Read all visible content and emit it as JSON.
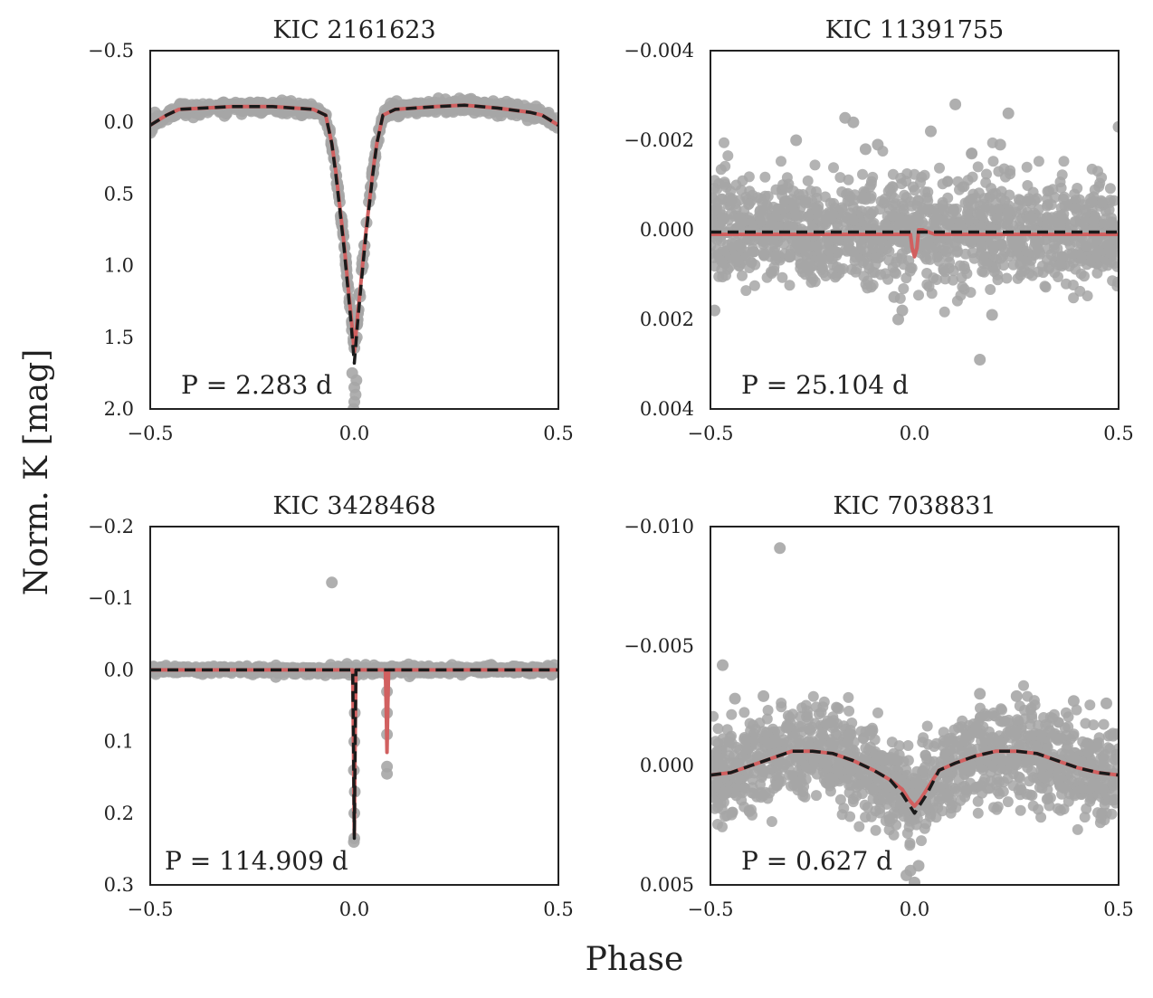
{
  "figure": {
    "ylabel": "Norm. K [mag]",
    "xlabel": "Phase",
    "colors": {
      "data": "#a6a6a6",
      "model": "#d16060",
      "fit": "#1a1a1a",
      "frame": "#222222"
    }
  },
  "chart_data": [
    {
      "type": "scatter",
      "title": "KIC 2161623",
      "annotation": "P = 2.283 d",
      "period_days": 2.283,
      "xlabel": "",
      "ylabel": "",
      "xlim": [
        -0.5,
        0.5
      ],
      "ylim": [
        2.0,
        -0.5
      ],
      "y_inverted": true,
      "xticks": [
        -0.5,
        0.0,
        0.5
      ],
      "xtick_labels": [
        "−0.5",
        "0.0",
        "0.5"
      ],
      "yticks": [
        -0.5,
        0.0,
        0.5,
        1.0,
        1.5,
        2.0
      ],
      "ytick_labels": [
        "−0.5",
        "0.0",
        "0.5",
        "1.0",
        "1.5",
        "2.0"
      ],
      "series": [
        {
          "name": "model",
          "style": "solid",
          "color": "#d16060",
          "x": [
            -0.5,
            -0.46,
            -0.43,
            -0.3,
            -0.2,
            -0.1,
            -0.07,
            -0.055,
            -0.045,
            -0.035,
            -0.025,
            -0.015,
            -0.008,
            0.0,
            0.008,
            0.015,
            0.025,
            0.035,
            0.045,
            0.055,
            0.07,
            0.1,
            0.2,
            0.27,
            0.35,
            0.43,
            0.46,
            0.5
          ],
          "y": [
            0.02,
            -0.05,
            -0.09,
            -0.11,
            -0.11,
            -0.09,
            -0.05,
            0.15,
            0.35,
            0.6,
            0.85,
            1.15,
            1.35,
            1.6,
            1.35,
            1.15,
            0.85,
            0.6,
            0.35,
            0.15,
            -0.05,
            -0.09,
            -0.11,
            -0.12,
            -0.1,
            -0.07,
            -0.05,
            0.02
          ]
        },
        {
          "name": "fit",
          "style": "dashed",
          "color": "#1a1a1a",
          "x": [
            -0.5,
            -0.46,
            -0.43,
            -0.3,
            -0.2,
            -0.1,
            -0.07,
            -0.055,
            -0.045,
            -0.035,
            -0.025,
            -0.015,
            -0.008,
            0.0,
            0.008,
            0.015,
            0.025,
            0.035,
            0.045,
            0.055,
            0.07,
            0.1,
            0.2,
            0.27,
            0.35,
            0.43,
            0.46,
            0.5
          ],
          "y": [
            0.02,
            -0.05,
            -0.09,
            -0.11,
            -0.11,
            -0.09,
            -0.05,
            0.15,
            0.37,
            0.62,
            0.88,
            1.18,
            1.4,
            1.68,
            1.4,
            1.18,
            0.88,
            0.62,
            0.37,
            0.15,
            -0.05,
            -0.09,
            -0.11,
            -0.12,
            -0.1,
            -0.07,
            -0.05,
            0.02
          ]
        },
        {
          "name": "data",
          "style": "points",
          "color": "#a6a6a6",
          "x": [
            -0.49,
            -0.47,
            -0.44,
            -0.4,
            -0.35,
            -0.3,
            -0.25,
            -0.2,
            -0.15,
            -0.1,
            -0.08,
            -0.06,
            -0.05,
            -0.04,
            -0.03,
            -0.02,
            -0.012,
            -0.006,
            0.0,
            0.0,
            0.003,
            0.006,
            0.012,
            0.02,
            0.03,
            0.04,
            0.05,
            0.06,
            0.08,
            0.1,
            0.15,
            0.2,
            0.25,
            0.3,
            0.35,
            0.4,
            0.44,
            0.47,
            0.49,
            -0.005,
            0.005,
            -0.002
          ],
          "y": [
            0.02,
            -0.03,
            -0.08,
            -0.1,
            -0.11,
            -0.12,
            -0.12,
            -0.11,
            -0.1,
            -0.09,
            -0.07,
            0.05,
            0.25,
            0.45,
            0.7,
            0.98,
            1.25,
            1.45,
            1.85,
            1.95,
            1.9,
            1.5,
            1.2,
            0.95,
            0.7,
            0.45,
            0.25,
            0.05,
            -0.07,
            -0.09,
            -0.11,
            -0.12,
            -0.12,
            -0.12,
            -0.11,
            -0.09,
            -0.06,
            -0.02,
            0.02,
            1.75,
            1.8,
            2.0
          ]
        }
      ]
    },
    {
      "type": "scatter",
      "title": "KIC 11391755",
      "annotation": "P = 25.104 d",
      "period_days": 25.104,
      "xlabel": "",
      "ylabel": "",
      "xlim": [
        -0.5,
        0.5
      ],
      "ylim": [
        0.004,
        -0.004
      ],
      "y_inverted": true,
      "xticks": [
        -0.5,
        0.0,
        0.5
      ],
      "xtick_labels": [
        "−0.5",
        "0.0",
        "0.5"
      ],
      "yticks": [
        -0.004,
        -0.002,
        0.0,
        0.002,
        0.004
      ],
      "ytick_labels": [
        "−0.004",
        "−0.002",
        "0.000",
        "0.002",
        "0.004"
      ],
      "series": [
        {
          "name": "model",
          "style": "solid",
          "color": "#d16060",
          "x": [
            -0.5,
            -0.02,
            -0.01,
            -0.006,
            0.0,
            0.006,
            0.01,
            0.02,
            0.05,
            0.1,
            0.5
          ],
          "y": [
            0.0001,
            0.0001,
            0.0001,
            0.0004,
            0.0006,
            0.0004,
            0.0,
            0.0,
            0.0001,
            0.0001,
            0.0001
          ]
        },
        {
          "name": "fit",
          "style": "dashed",
          "color": "#1a1a1a",
          "x": [
            -0.5,
            0.5
          ],
          "y": [
            5e-05,
            5e-05
          ]
        },
        {
          "name": "data_outliers",
          "style": "points",
          "color": "#a6a6a6",
          "x": [
            -0.17,
            -0.15,
            0.1,
            0.23,
            0.04,
            -0.29,
            -0.12,
            -0.09,
            0.14,
            0.21,
            0.5,
            -0.03,
            -0.05,
            -0.49,
            0.16,
            -0.04,
            0.19
          ],
          "y": [
            -0.0025,
            -0.0024,
            -0.0028,
            -0.0026,
            -0.0022,
            -0.002,
            -0.0018,
            -0.0019,
            -0.0017,
            -0.0019,
            -0.0023,
            0.0018,
            0.0015,
            0.0018,
            0.0029,
            0.002,
            0.0019
          ]
        }
      ],
      "scatter_band": {
        "y_center": 0.0,
        "y_spread": 0.0013,
        "x_range": [
          -0.5,
          0.5
        ]
      }
    },
    {
      "type": "scatter",
      "title": "KIC 3428468",
      "annotation": "P = 114.909 d",
      "period_days": 114.909,
      "xlabel": "",
      "ylabel": "",
      "xlim": [
        -0.5,
        0.5
      ],
      "ylim": [
        0.3,
        -0.2
      ],
      "y_inverted": true,
      "xticks": [
        -0.5,
        0.0,
        0.5
      ],
      "xtick_labels": [
        "−0.5",
        "0.0",
        "0.5"
      ],
      "yticks": [
        -0.2,
        -0.1,
        0.0,
        0.1,
        0.2,
        0.3
      ],
      "ytick_labels": [
        "−0.2",
        "−0.1",
        "0.0",
        "0.1",
        "0.2",
        "0.3"
      ],
      "series": [
        {
          "name": "model",
          "style": "solid",
          "color": "#d16060",
          "x": [
            -0.5,
            -0.004,
            -0.002,
            0.0,
            0.002,
            0.004,
            0.076,
            0.078,
            0.08,
            0.082,
            0.084,
            0.5
          ],
          "y": [
            0.0,
            0.0,
            0.1,
            0.23,
            0.1,
            0.0,
            0.0,
            0.05,
            0.115,
            0.05,
            0.0,
            0.0
          ]
        },
        {
          "name": "fit",
          "style": "dashed",
          "color": "#1a1a1a",
          "x": [
            -0.5,
            -0.004,
            -0.002,
            0.0,
            0.002,
            0.004,
            0.5
          ],
          "y": [
            0.0,
            0.0,
            0.1,
            0.235,
            0.1,
            0.0,
            0.0
          ]
        },
        {
          "name": "data",
          "style": "points",
          "color": "#a6a6a6",
          "x": [
            -0.055,
            -0.001,
            0.0,
            0.0,
            0.001,
            -0.001,
            0.0,
            0.001,
            0.08,
            0.08,
            0.08,
            0.08,
            0.08
          ],
          "y": [
            -0.122,
            0.24,
            0.235,
            0.2,
            0.17,
            0.14,
            0.1,
            0.06,
            0.145,
            0.135,
            0.09,
            0.06,
            0.03
          ]
        }
      ],
      "scatter_band": {
        "y_center": 0.0,
        "y_spread": 0.004,
        "x_range": [
          -0.5,
          0.5
        ]
      }
    },
    {
      "type": "scatter",
      "title": "KIC 7038831",
      "annotation": "P = 0.627 d",
      "period_days": 0.627,
      "xlabel": "",
      "ylabel": "",
      "xlim": [
        -0.5,
        0.5
      ],
      "ylim": [
        0.005,
        -0.01
      ],
      "y_inverted": true,
      "xticks": [
        -0.5,
        0.0,
        0.5
      ],
      "xtick_labels": [
        "−0.5",
        "0.0",
        "0.5"
      ],
      "yticks": [
        -0.01,
        -0.005,
        0.0,
        0.005
      ],
      "ytick_labels": [
        "−0.010",
        "−0.005",
        "0.000",
        "0.005"
      ],
      "series": [
        {
          "name": "model",
          "style": "solid",
          "color": "#d16060",
          "x": [
            -0.5,
            -0.45,
            -0.4,
            -0.35,
            -0.3,
            -0.25,
            -0.2,
            -0.15,
            -0.1,
            -0.06,
            -0.03,
            -0.015,
            0.0,
            0.015,
            0.03,
            0.06,
            0.1,
            0.15,
            0.2,
            0.25,
            0.3,
            0.35,
            0.4,
            0.45,
            0.5
          ],
          "y": [
            0.0004,
            0.0003,
            0.0,
            -0.0003,
            -0.0006,
            -0.0006,
            -0.0005,
            -0.0002,
            0.0002,
            0.0006,
            0.001,
            0.0014,
            0.0017,
            0.0014,
            0.001,
            0.0002,
            -0.0001,
            -0.0004,
            -0.0006,
            -0.0006,
            -0.0005,
            -0.0002,
            0.0001,
            0.0003,
            0.0004
          ]
        },
        {
          "name": "fit",
          "style": "dashed",
          "color": "#1a1a1a",
          "x": [
            -0.5,
            -0.45,
            -0.4,
            -0.35,
            -0.3,
            -0.25,
            -0.2,
            -0.15,
            -0.1,
            -0.06,
            -0.03,
            -0.015,
            0.0,
            0.015,
            0.03,
            0.06,
            0.1,
            0.15,
            0.2,
            0.25,
            0.3,
            0.35,
            0.4,
            0.45,
            0.5
          ],
          "y": [
            0.0004,
            0.0003,
            0.0,
            -0.0003,
            -0.0006,
            -0.0006,
            -0.0005,
            -0.0002,
            0.0002,
            0.0006,
            0.0012,
            0.0016,
            0.002,
            0.0016,
            0.0012,
            0.0002,
            -0.0001,
            -0.0004,
            -0.0006,
            -0.0006,
            -0.0005,
            -0.0002,
            0.0001,
            0.0003,
            0.0004
          ]
        },
        {
          "name": "data_outliers",
          "style": "points",
          "color": "#a6a6a6",
          "x": [
            -0.33,
            -0.47,
            -0.44,
            -0.37,
            0.16,
            0.25,
            0.39,
            0.47,
            -0.02,
            0.0,
            -0.01,
            0.01
          ],
          "y": [
            -0.0091,
            -0.0042,
            -0.0028,
            -0.0029,
            -0.003,
            -0.0029,
            -0.0027,
            -0.0026,
            0.0046,
            0.0049,
            0.0044,
            0.0042
          ]
        }
      ],
      "scatter_band": {
        "y_center": 0.0,
        "y_spread": 0.0021,
        "x_range": [
          -0.5,
          0.5
        ],
        "follows_model": true
      }
    }
  ]
}
